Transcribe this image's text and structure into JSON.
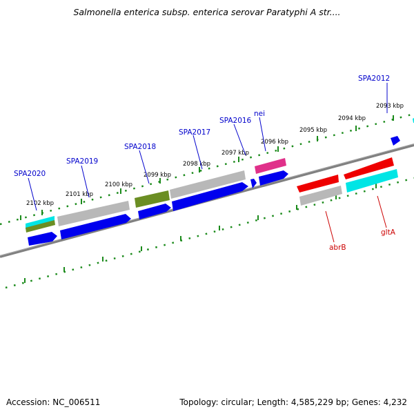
{
  "title": "Salmonella enterica subsp. enterica serovar Paratyphi A str....",
  "footer": {
    "accession": "Accession: NC_006511",
    "topology": "Topology: circular; Length: 4,585,229 bp; Genes: 4,232"
  },
  "ticks": [
    "2093 kbp",
    "2094 kbp",
    "2095 kbp",
    "2096 kbp",
    "2097 kbp",
    "2098 kbp",
    "2099 kbp",
    "2100 kbp",
    "2101 kbp",
    "2102 kbp"
  ],
  "genes": {
    "spa2012": "SPA2012",
    "spa2016": "SPA2016",
    "nei": "nei",
    "spa2017": "SPA2017",
    "spa2018": "SPA2018",
    "spa2019": "SPA2019",
    "spa2020": "SPA2020",
    "abrB": "abrB",
    "gltA": "gltA"
  },
  "colors": {
    "forward_cds": "#0000ee",
    "reverse_cds": "#ee0000",
    "label_forward": "#0000cc",
    "label_reverse": "#cc0000",
    "tick": "#1a8a1a",
    "backbone": "#808080",
    "gray_feature": "#b8b8b8",
    "olive_feature": "#6b8e23",
    "cyan_feature": "#00e5e5",
    "magenta_feature": "#e0308a"
  }
}
